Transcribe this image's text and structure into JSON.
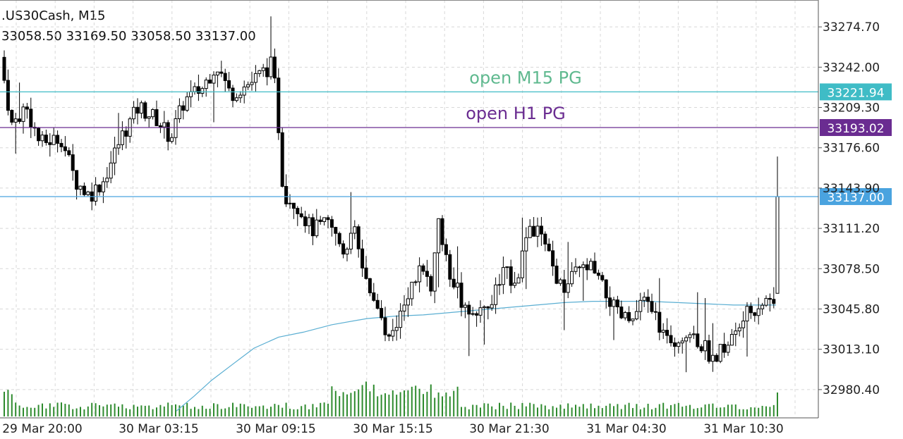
{
  "header": {
    "symbol_line": ".US30Cash, M15",
    "ohlc_line": "33058.50 33169.50 33058.50 33137.00"
  },
  "colors": {
    "background": "#ffffff",
    "grid": "#d8d8d8",
    "candle": "#000000",
    "volume": "#2e8b2e",
    "moving_average": "#5aaed2",
    "m15_line": "#3fbcc6",
    "h1_line": "#6a2c91",
    "bid_line": "#4aa3df"
  },
  "chart_data": {
    "type": "candlestick",
    "symbol": ".US30Cash",
    "timeframe": "M15",
    "ylim": [
      32958.6,
      33296.5
    ],
    "y_ticks": [
      33274.7,
      33242.0,
      33209.3,
      33176.6,
      33143.9,
      33111.2,
      33078.5,
      33045.8,
      33013.1,
      32980.4
    ],
    "x_tick_labels": [
      "29 Mar 20:00",
      "30 Mar 03:15",
      "30 Mar 09:15",
      "30 Mar 15:15",
      "30 Mar 21:30",
      "31 Mar 04:30",
      "31 Mar 10:30"
    ],
    "price_lines": [
      {
        "label": "open M15 PG",
        "value": 33221.94,
        "color": "#3fbcc6"
      },
      {
        "label": "open H1 PG",
        "value": 33193.02,
        "color": "#6a2c91"
      },
      {
        "label": "",
        "value": 33137.0,
        "color": "#4aa3df"
      }
    ],
    "last_candle": {
      "open": 33058.5,
      "high": 33169.5,
      "low": 33058.5,
      "close": 33137.0
    },
    "moving_average_points": [
      [
        250,
        32963
      ],
      [
        275,
        32975
      ],
      [
        300,
        32988
      ],
      [
        330,
        33001
      ],
      [
        360,
        33014
      ],
      [
        395,
        33023
      ],
      [
        430,
        33027
      ],
      [
        470,
        33033
      ],
      [
        520,
        33038
      ],
      [
        560,
        33040
      ],
      [
        600,
        33041
      ],
      [
        640,
        33043
      ],
      [
        680,
        33045
      ],
      [
        720,
        33047
      ],
      [
        760,
        33049
      ],
      [
        800,
        33051
      ],
      [
        840,
        33052
      ],
      [
        880,
        33052
      ],
      [
        920,
        33052
      ],
      [
        960,
        33051
      ],
      [
        1000,
        33050
      ],
      [
        1040,
        33049
      ],
      [
        1070,
        33049
      ],
      [
        1100,
        33049
      ]
    ]
  }
}
